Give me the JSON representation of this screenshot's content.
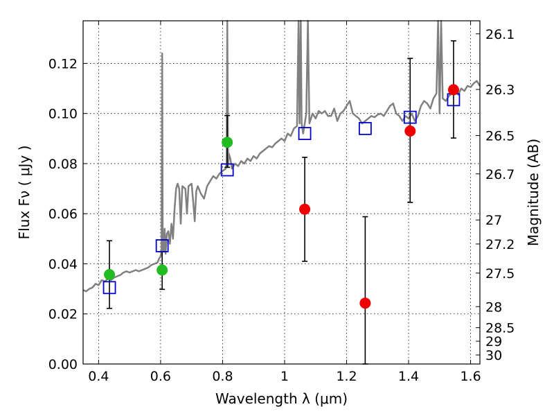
{
  "chart_data": {
    "type": "scatter",
    "xlabel": "Wavelength  λ (μm)",
    "ylabel": "Flux  Fν  ( μJy )",
    "y2label": "Magnitude (AB)",
    "xlim": [
      0.35,
      1.63
    ],
    "ylim": [
      0.0,
      0.137
    ],
    "x_ticks": [
      0.4,
      0.6,
      0.8,
      1.0,
      1.2,
      1.4,
      1.6
    ],
    "x_tick_labels": [
      "0.4",
      "0.6",
      "0.8",
      "1",
      "1.2",
      "1.4",
      "1.6"
    ],
    "y_ticks": [
      0.0,
      0.02,
      0.04,
      0.06,
      0.08,
      0.1,
      0.12
    ],
    "y_tick_labels": [
      "0.00",
      "0.02",
      "0.04",
      "0.06",
      "0.08",
      "0.10",
      "0.12"
    ],
    "y2_ticks": [
      {
        "label": "26.1",
        "flux": 0.1318
      },
      {
        "label": "26.3",
        "flux": 0.1096
      },
      {
        "label": "26.5",
        "flux": 0.0912
      },
      {
        "label": "26.7",
        "flux": 0.0759
      },
      {
        "label": "27",
        "flux": 0.0575
      },
      {
        "label": "27.2",
        "flux": 0.0479
      },
      {
        "label": "27.5",
        "flux": 0.0363
      },
      {
        "label": "28",
        "flux": 0.0229
      },
      {
        "label": "28.5",
        "flux": 0.0145
      },
      {
        "label": "29",
        "flux": 0.0091
      },
      {
        "label": "30",
        "flux": 0.0036
      }
    ],
    "grid": true,
    "series": [
      {
        "kind": "spectrum",
        "color": "#808080",
        "points": [
          [
            0.35,
            0.0295
          ],
          [
            0.36,
            0.029
          ],
          [
            0.37,
            0.03
          ],
          [
            0.38,
            0.0305
          ],
          [
            0.39,
            0.032
          ],
          [
            0.4,
            0.0315
          ],
          [
            0.41,
            0.0335
          ],
          [
            0.42,
            0.033
          ],
          [
            0.43,
            0.034
          ],
          [
            0.44,
            0.0335
          ],
          [
            0.45,
            0.0345
          ],
          [
            0.46,
            0.035
          ],
          [
            0.47,
            0.0355
          ],
          [
            0.48,
            0.0365
          ],
          [
            0.49,
            0.037
          ],
          [
            0.5,
            0.0365
          ],
          [
            0.51,
            0.037
          ],
          [
            0.52,
            0.0375
          ],
          [
            0.53,
            0.037
          ],
          [
            0.54,
            0.0375
          ],
          [
            0.55,
            0.038
          ],
          [
            0.56,
            0.0385
          ],
          [
            0.57,
            0.0395
          ],
          [
            0.58,
            0.04
          ],
          [
            0.59,
            0.0405
          ],
          [
            0.595,
            0.042
          ],
          [
            0.6,
            0.043
          ],
          [
            0.603,
            0.045
          ],
          [
            0.605,
            0.124
          ],
          [
            0.607,
            0.046
          ],
          [
            0.61,
            0.045
          ],
          [
            0.613,
            0.054
          ],
          [
            0.616,
            0.044
          ],
          [
            0.62,
            0.052
          ],
          [
            0.625,
            0.053
          ],
          [
            0.63,
            0.048
          ],
          [
            0.635,
            0.056
          ],
          [
            0.64,
            0.05
          ],
          [
            0.645,
            0.062
          ],
          [
            0.65,
            0.07
          ],
          [
            0.655,
            0.072
          ],
          [
            0.66,
            0.07
          ],
          [
            0.665,
            0.056
          ],
          [
            0.67,
            0.071
          ],
          [
            0.68,
            0.07
          ],
          [
            0.685,
            0.06
          ],
          [
            0.69,
            0.071
          ],
          [
            0.7,
            0.072
          ],
          [
            0.705,
            0.065
          ],
          [
            0.71,
            0.057
          ],
          [
            0.715,
            0.069
          ],
          [
            0.72,
            0.071
          ],
          [
            0.73,
            0.068
          ],
          [
            0.74,
            0.066
          ],
          [
            0.75,
            0.071
          ],
          [
            0.76,
            0.073
          ],
          [
            0.77,
            0.075
          ],
          [
            0.78,
            0.074
          ],
          [
            0.79,
            0.076
          ],
          [
            0.8,
            0.077
          ],
          [
            0.81,
            0.078
          ],
          [
            0.813,
            0.08
          ],
          [
            0.815,
            0.137
          ],
          [
            0.818,
            0.079
          ],
          [
            0.82,
            0.084
          ],
          [
            0.825,
            0.082
          ],
          [
            0.83,
            0.078
          ],
          [
            0.84,
            0.08
          ],
          [
            0.85,
            0.079
          ],
          [
            0.86,
            0.081
          ],
          [
            0.87,
            0.08
          ],
          [
            0.88,
            0.082
          ],
          [
            0.89,
            0.081
          ],
          [
            0.9,
            0.083
          ],
          [
            0.91,
            0.082
          ],
          [
            0.92,
            0.084
          ],
          [
            0.93,
            0.085
          ],
          [
            0.94,
            0.086
          ],
          [
            0.95,
            0.087
          ],
          [
            0.96,
            0.0865
          ],
          [
            0.97,
            0.088
          ],
          [
            0.98,
            0.089
          ],
          [
            0.99,
            0.09
          ],
          [
            1.0,
            0.089
          ],
          [
            1.01,
            0.092
          ],
          [
            1.02,
            0.091
          ],
          [
            1.03,
            0.094
          ],
          [
            1.04,
            0.095
          ],
          [
            1.045,
            0.137
          ],
          [
            1.048,
            0.096
          ],
          [
            1.052,
            0.137
          ],
          [
            1.055,
            0.096
          ],
          [
            1.06,
            0.092
          ],
          [
            1.07,
            0.1
          ],
          [
            1.075,
            0.137
          ],
          [
            1.08,
            0.096
          ],
          [
            1.09,
            0.1
          ],
          [
            1.1,
            0.098
          ],
          [
            1.11,
            0.101
          ],
          [
            1.12,
            0.1
          ],
          [
            1.13,
            0.101
          ],
          [
            1.14,
            0.099
          ],
          [
            1.15,
            0.099
          ],
          [
            1.16,
            0.102
          ],
          [
            1.17,
            0.097
          ],
          [
            1.18,
            0.1
          ],
          [
            1.19,
            0.101
          ],
          [
            1.2,
            0.103
          ],
          [
            1.21,
            0.105
          ],
          [
            1.22,
            0.1
          ],
          [
            1.23,
            0.099
          ],
          [
            1.24,
            0.098
          ],
          [
            1.25,
            0.096
          ],
          [
            1.26,
            0.097
          ],
          [
            1.27,
            0.098
          ],
          [
            1.28,
            0.099
          ],
          [
            1.29,
            0.0985
          ],
          [
            1.3,
            0.0995
          ],
          [
            1.31,
            0.1
          ],
          [
            1.32,
            0.099
          ],
          [
            1.33,
            0.101
          ],
          [
            1.34,
            0.103
          ],
          [
            1.35,
            0.104
          ],
          [
            1.36,
            0.1
          ],
          [
            1.37,
            0.099
          ],
          [
            1.38,
            0.097
          ],
          [
            1.39,
            0.099
          ],
          [
            1.4,
            0.098
          ],
          [
            1.41,
            0.1
          ],
          [
            1.42,
            0.097
          ],
          [
            1.43,
            0.099
          ],
          [
            1.44,
            0.103
          ],
          [
            1.45,
            0.105
          ],
          [
            1.46,
            0.104
          ],
          [
            1.47,
            0.102
          ],
          [
            1.48,
            0.106
          ],
          [
            1.49,
            0.108
          ],
          [
            1.495,
            0.137
          ],
          [
            1.5,
            0.1
          ],
          [
            1.505,
            0.137
          ],
          [
            1.51,
            0.106
          ],
          [
            1.52,
            0.105
          ],
          [
            1.53,
            0.107
          ],
          [
            1.54,
            0.108
          ],
          [
            1.55,
            0.109
          ],
          [
            1.56,
            0.1075
          ],
          [
            1.57,
            0.11
          ],
          [
            1.58,
            0.109
          ],
          [
            1.59,
            0.111
          ],
          [
            1.6,
            0.1105
          ],
          [
            1.61,
            0.112
          ],
          [
            1.62,
            0.113
          ],
          [
            1.63,
            0.111
          ]
        ]
      },
      {
        "kind": "squares",
        "color": "#0000cc",
        "points": [
          [
            0.435,
            0.0305
          ],
          [
            0.605,
            0.0472
          ],
          [
            0.815,
            0.0775
          ],
          [
            1.065,
            0.092
          ],
          [
            1.26,
            0.094
          ],
          [
            1.405,
            0.0985
          ],
          [
            1.545,
            0.1055
          ]
        ]
      },
      {
        "kind": "circles",
        "color": "#22bb22",
        "points": [
          [
            0.435,
            0.0357
          ],
          [
            0.605,
            0.0375
          ],
          [
            0.815,
            0.0885
          ]
        ]
      },
      {
        "kind": "circles",
        "color": "#ee0000",
        "points": [
          [
            1.065,
            0.0618
          ],
          [
            1.26,
            0.0243
          ],
          [
            1.405,
            0.093
          ],
          [
            1.545,
            0.1095
          ]
        ]
      },
      {
        "kind": "errorbars",
        "color": "#000000",
        "bars": [
          [
            0.435,
            0.0222,
            0.0492
          ],
          [
            0.605,
            0.0298,
            0.0448
          ],
          [
            0.815,
            0.0785,
            0.0992
          ],
          [
            1.065,
            0.041,
            0.0825
          ],
          [
            1.26,
            0.0,
            0.0588
          ],
          [
            1.405,
            0.0645,
            0.122
          ],
          [
            1.545,
            0.0902,
            0.129
          ]
        ]
      }
    ]
  }
}
